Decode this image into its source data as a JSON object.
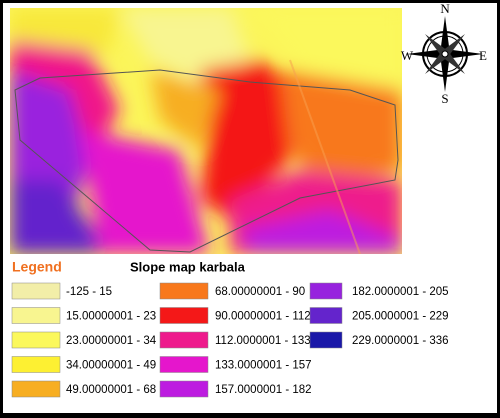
{
  "compass": {
    "north": "N",
    "east": "E",
    "south": "S",
    "west": "W"
  },
  "legend": {
    "title": "Legend",
    "map_title": "Slope map karbala",
    "items": [
      {
        "label": "-125 - 15",
        "color": "#f2eea8"
      },
      {
        "label": "15.00000001 - 23",
        "color": "#f8f590"
      },
      {
        "label": "23.00000001 - 34",
        "color": "#fbf85c"
      },
      {
        "label": "34.00000001 - 49",
        "color": "#fdf032"
      },
      {
        "label": "49.00000001 - 68",
        "color": "#f7ae22"
      },
      {
        "label": "68.00000001 - 90",
        "color": "#f8781c"
      },
      {
        "label": "90.00000001 - 112",
        "color": "#f41818"
      },
      {
        "label": "112.0000001 - 133",
        "color": "#ee1a8c"
      },
      {
        "label": "133.0000001 - 157",
        "color": "#e516cc"
      },
      {
        "label": "157.0000001 - 182",
        "color": "#bd1ce0"
      },
      {
        "label": "182.0000001 - 205",
        "color": "#9722de"
      },
      {
        "label": "205.0000001 - 229",
        "color": "#6424cc"
      },
      {
        "label": "229.0000001 - 336",
        "color": "#1a18a8"
      }
    ]
  }
}
